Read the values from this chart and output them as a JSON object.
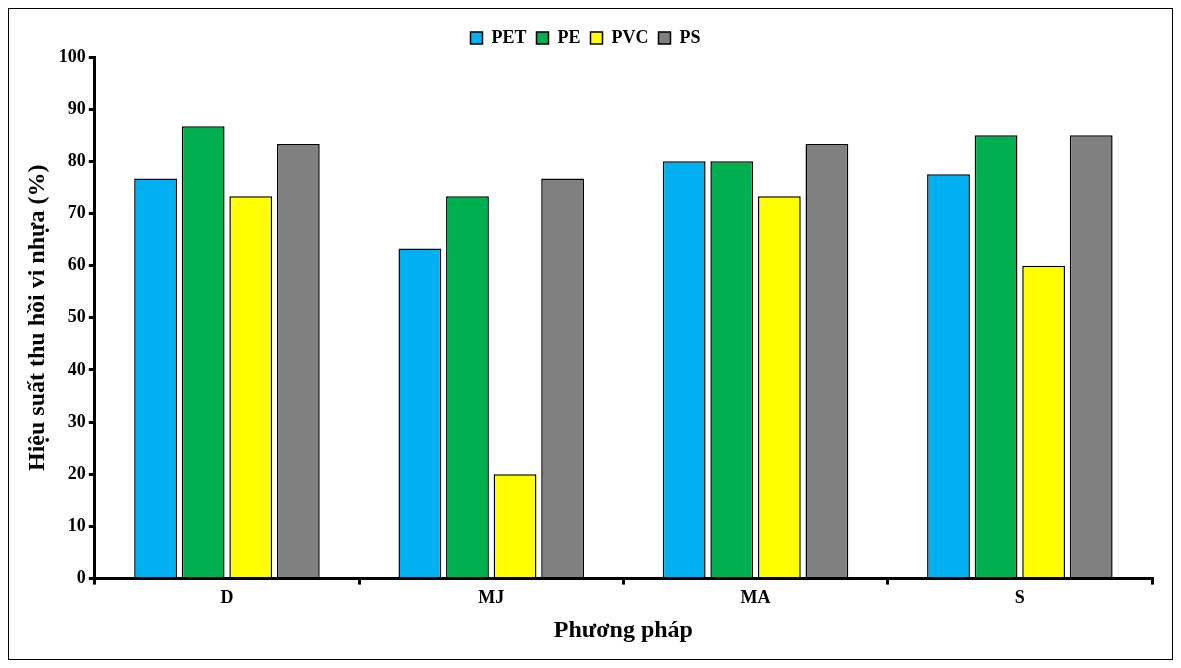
{
  "chart_data": {
    "type": "bar",
    "xlabel": "Phương pháp",
    "ylabel": "Hiệu suất thu hồi vi nhựa (%)",
    "categories": [
      "D",
      "MJ",
      "MA",
      "S"
    ],
    "series": [
      {
        "name": "PET",
        "color": "#00b0f0",
        "values": [
          76.7,
          63.3,
          80,
          77.5
        ]
      },
      {
        "name": "PE",
        "color": "#00b050",
        "values": [
          86.7,
          73.3,
          80,
          85
        ]
      },
      {
        "name": "PVC",
        "color": "#ffff00",
        "values": [
          73.3,
          20,
          73.3,
          60
        ]
      },
      {
        "name": "PS",
        "color": "#808080",
        "values": [
          83.3,
          76.7,
          83.3,
          85
        ]
      }
    ],
    "ylim": [
      0,
      100
    ],
    "yticks": [
      0,
      10,
      20,
      30,
      40,
      50,
      60,
      70,
      80,
      90,
      100
    ],
    "legend": "top",
    "grid": false
  }
}
